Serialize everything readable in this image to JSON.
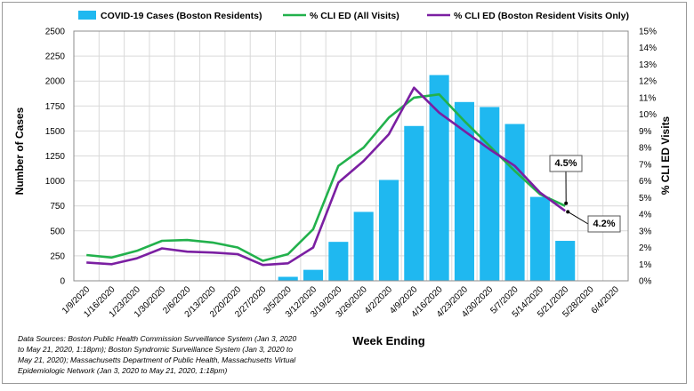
{
  "chart_data": {
    "type": "bar",
    "categories": [
      "1/9/2020",
      "1/16/2020",
      "1/23/2020",
      "1/30/2020",
      "2/6/2020",
      "2/13/2020",
      "2/20/2020",
      "2/27/2020",
      "3/5/2020",
      "3/12/2020",
      "3/19/2020",
      "3/26/2020",
      "4/2/2020",
      "4/9/2020",
      "4/16/2020",
      "4/23/2020",
      "4/30/2020",
      "5/7/2020",
      "5/14/2020",
      "5/21/2020",
      "5/28/2020",
      "6/4/2020"
    ],
    "series": [
      {
        "name": "COVID-19 Cases (Boston Residents)",
        "type": "bar",
        "axis": "left",
        "color": "#1fb8f0",
        "values": [
          0,
          0,
          0,
          0,
          0,
          0,
          0,
          0,
          40,
          110,
          390,
          690,
          1010,
          1550,
          2060,
          1790,
          1740,
          1570,
          840,
          400,
          null,
          null
        ]
      },
      {
        "name": "% CLI ED (All Visits)",
        "type": "line",
        "axis": "right",
        "color": "#22b14c",
        "values": [
          1.55,
          1.4,
          1.8,
          2.4,
          2.45,
          2.3,
          2.0,
          1.2,
          1.6,
          3.1,
          6.9,
          8.0,
          9.8,
          11.0,
          11.2,
          9.6,
          8.1,
          6.6,
          5.2,
          4.5,
          null,
          null
        ]
      },
      {
        "name": "% CLI ED (Boston Resident Visits Only)",
        "type": "line",
        "axis": "right",
        "color": "#7b1fa2",
        "values": [
          1.1,
          1.0,
          1.35,
          1.95,
          1.75,
          1.7,
          1.6,
          0.95,
          1.05,
          2.0,
          5.9,
          7.2,
          8.8,
          11.6,
          10.1,
          9.0,
          7.9,
          6.9,
          5.3,
          4.2,
          null,
          null
        ]
      }
    ],
    "xlabel": "Week Ending",
    "ylabel": "Number of Cases",
    "y2label": "% CLI ED Visits",
    "ylim": [
      0,
      2500
    ],
    "y2lim": [
      0,
      15
    ],
    "yticks": [
      "0",
      "250",
      "500",
      "750",
      "1000",
      "1250",
      "1500",
      "1750",
      "2000",
      "2250",
      "2500"
    ],
    "y2ticks": [
      "0%",
      "1%",
      "2%",
      "3%",
      "4%",
      "5%",
      "6%",
      "7%",
      "8%",
      "9%",
      "10%",
      "11%",
      "12%",
      "13%",
      "14%",
      "15%"
    ],
    "grid": true,
    "legend": "top",
    "annotations": [
      {
        "text": "4.5%",
        "color": "#22b14c",
        "series": 1,
        "point": 19
      },
      {
        "text": "4.2%",
        "color": "#7b1fa2",
        "series": 2,
        "point": 19
      }
    ],
    "source_note": "Data Sources: Boston Public Health Commission Surveillance System (Jan 3, 2020 to May 21, 2020, 1:18pm); Boston Syndromic Surveillance System (Jan 3, 2020 to May 21, 2020); Massachusetts Department of Public Health, Massachusetts Virtual Epidemiologic Network (Jan 3, 2020 to May 21, 2020, 1:18pm)"
  }
}
